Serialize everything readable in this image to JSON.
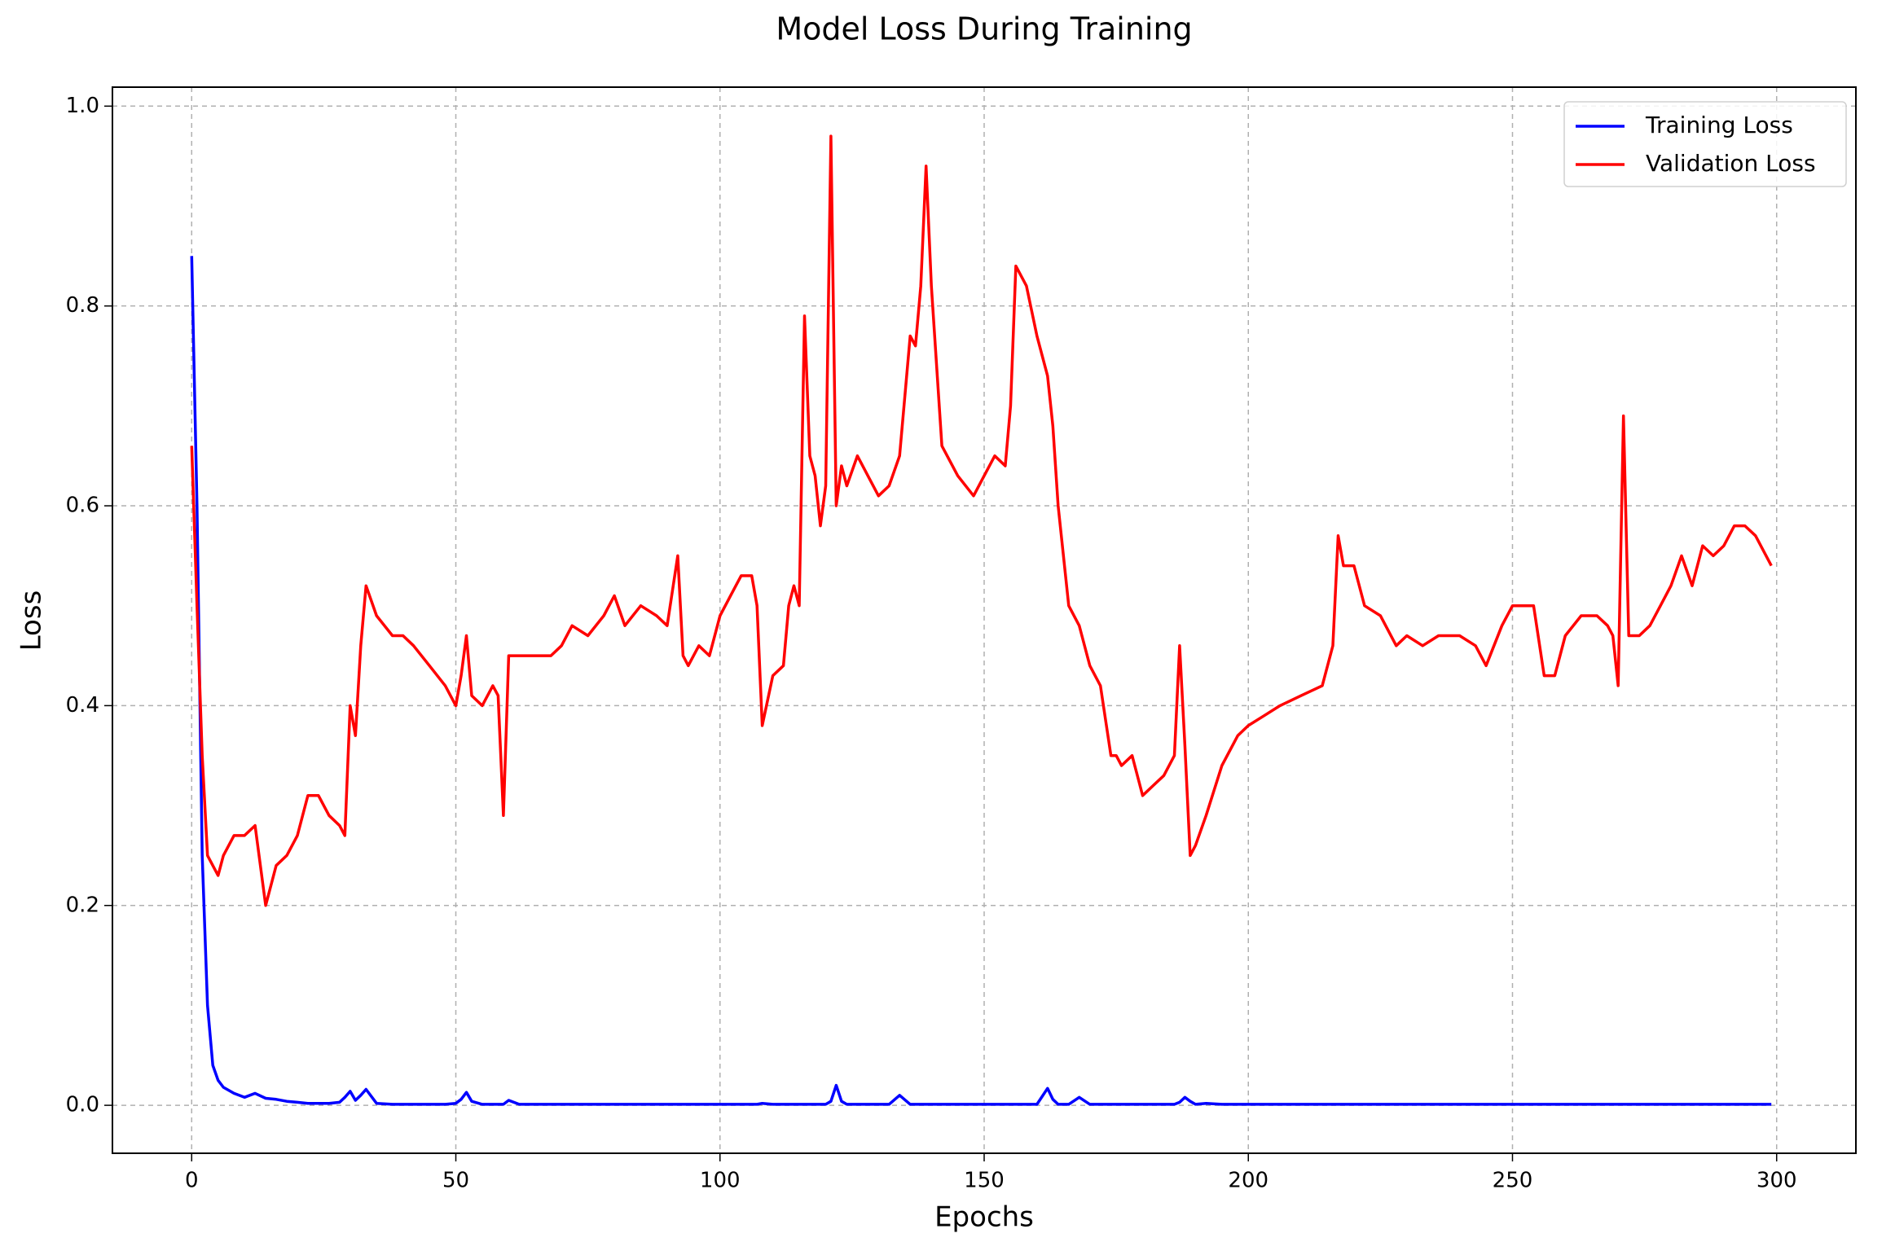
{
  "chart_data": {
    "type": "line",
    "title": "Model Loss During Training",
    "x_label": "Epochs",
    "y_label": "Loss",
    "x": [
      0,
      1,
      2,
      3,
      4,
      5,
      6,
      8,
      10,
      12,
      14,
      16,
      18,
      20,
      22,
      24,
      26,
      28,
      29,
      30,
      31,
      32,
      33,
      35,
      38,
      40,
      42,
      45,
      48,
      50,
      51,
      52,
      53,
      55,
      57,
      58,
      59,
      60,
      62,
      65,
      68,
      70,
      72,
      75,
      78,
      80,
      82,
      85,
      88,
      90,
      92,
      93,
      94,
      96,
      98,
      100,
      102,
      104,
      106,
      107,
      108,
      110,
      112,
      113,
      114,
      115,
      116,
      117,
      118,
      119,
      120,
      121,
      122,
      123,
      124,
      126,
      128,
      130,
      132,
      134,
      136,
      137,
      138,
      139,
      140,
      142,
      145,
      148,
      150,
      152,
      154,
      155,
      156,
      158,
      160,
      162,
      163,
      164,
      166,
      168,
      170,
      172,
      174,
      175,
      176,
      178,
      180,
      182,
      184,
      186,
      187,
      188,
      189,
      190,
      192,
      195,
      198,
      200,
      203,
      206,
      210,
      214,
      216,
      217,
      218,
      220,
      222,
      225,
      228,
      230,
      233,
      236,
      240,
      243,
      245,
      248,
      250,
      252,
      254,
      256,
      258,
      260,
      263,
      266,
      268,
      269,
      270,
      271,
      272,
      274,
      276,
      278,
      280,
      282,
      284,
      286,
      288,
      290,
      292,
      294,
      296,
      299
    ],
    "series": [
      {
        "name": "Training Loss",
        "color": "#0000ff",
        "values": [
          0.85,
          0.6,
          0.25,
          0.1,
          0.04,
          0.025,
          0.018,
          0.012,
          0.008,
          0.012,
          0.007,
          0.006,
          0.004,
          0.003,
          0.002,
          0.002,
          0.002,
          0.003,
          0.008,
          0.014,
          0.005,
          0.01,
          0.016,
          0.002,
          0.001,
          0.001,
          0.001,
          0.001,
          0.001,
          0.002,
          0.006,
          0.013,
          0.004,
          0.001,
          0.001,
          0.001,
          0.001,
          0.005,
          0.001,
          0.001,
          0.001,
          0.001,
          0.001,
          0.001,
          0.001,
          0.001,
          0.001,
          0.001,
          0.001,
          0.001,
          0.001,
          0.001,
          0.001,
          0.001,
          0.001,
          0.001,
          0.001,
          0.001,
          0.001,
          0.001,
          0.002,
          0.001,
          0.001,
          0.001,
          0.001,
          0.001,
          0.001,
          0.001,
          0.001,
          0.001,
          0.001,
          0.004,
          0.02,
          0.004,
          0.001,
          0.001,
          0.001,
          0.001,
          0.001,
          0.01,
          0.001,
          0.001,
          0.001,
          0.001,
          0.001,
          0.001,
          0.001,
          0.001,
          0.001,
          0.001,
          0.001,
          0.001,
          0.001,
          0.001,
          0.001,
          0.017,
          0.006,
          0.001,
          0.001,
          0.008,
          0.001,
          0.001,
          0.001,
          0.001,
          0.001,
          0.001,
          0.001,
          0.001,
          0.001,
          0.001,
          0.003,
          0.008,
          0.004,
          0.001,
          0.002,
          0.001,
          0.001,
          0.001,
          0.001,
          0.001,
          0.001,
          0.001,
          0.001,
          0.001,
          0.001,
          0.001,
          0.001,
          0.001,
          0.001,
          0.001,
          0.001,
          0.001,
          0.001,
          0.001,
          0.001,
          0.001,
          0.001,
          0.001,
          0.001,
          0.001,
          0.001,
          0.001,
          0.001,
          0.001,
          0.001,
          0.001,
          0.001,
          0.001,
          0.001,
          0.001,
          0.001,
          0.001,
          0.001,
          0.001,
          0.001,
          0.001,
          0.001,
          0.001,
          0.001,
          0.001,
          0.001,
          0.001
        ]
      },
      {
        "name": "Validation Loss",
        "color": "#ff0000",
        "values": [
          0.66,
          0.5,
          0.35,
          0.25,
          0.24,
          0.23,
          0.25,
          0.27,
          0.27,
          0.28,
          0.2,
          0.24,
          0.25,
          0.27,
          0.31,
          0.31,
          0.29,
          0.28,
          0.27,
          0.4,
          0.37,
          0.46,
          0.52,
          0.49,
          0.47,
          0.47,
          0.46,
          0.44,
          0.42,
          0.4,
          0.43,
          0.47,
          0.41,
          0.4,
          0.42,
          0.41,
          0.29,
          0.45,
          0.45,
          0.45,
          0.45,
          0.46,
          0.48,
          0.47,
          0.49,
          0.51,
          0.48,
          0.5,
          0.49,
          0.48,
          0.55,
          0.45,
          0.44,
          0.46,
          0.45,
          0.49,
          0.51,
          0.53,
          0.53,
          0.5,
          0.38,
          0.43,
          0.44,
          0.5,
          0.52,
          0.5,
          0.79,
          0.65,
          0.63,
          0.58,
          0.62,
          0.97,
          0.6,
          0.64,
          0.62,
          0.65,
          0.63,
          0.61,
          0.62,
          0.65,
          0.77,
          0.76,
          0.82,
          0.94,
          0.82,
          0.66,
          0.63,
          0.61,
          0.63,
          0.65,
          0.64,
          0.7,
          0.84,
          0.82,
          0.77,
          0.73,
          0.68,
          0.6,
          0.5,
          0.48,
          0.44,
          0.42,
          0.35,
          0.35,
          0.34,
          0.35,
          0.31,
          0.32,
          0.33,
          0.35,
          0.46,
          0.36,
          0.25,
          0.26,
          0.29,
          0.34,
          0.37,
          0.38,
          0.39,
          0.4,
          0.41,
          0.42,
          0.46,
          0.57,
          0.54,
          0.54,
          0.5,
          0.49,
          0.46,
          0.47,
          0.46,
          0.47,
          0.47,
          0.46,
          0.44,
          0.48,
          0.5,
          0.5,
          0.5,
          0.43,
          0.43,
          0.47,
          0.49,
          0.49,
          0.48,
          0.47,
          0.42,
          0.69,
          0.47,
          0.47,
          0.48,
          0.5,
          0.52,
          0.55,
          0.52,
          0.56,
          0.55,
          0.56,
          0.58,
          0.58,
          0.57,
          0.54
        ]
      }
    ],
    "xlim": [
      -15,
      315
    ],
    "xticks": [
      0,
      50,
      100,
      150,
      200,
      250,
      300
    ],
    "ylim": [
      -0.048,
      1.019
    ],
    "yticks": [
      {
        "value": 0,
        "label": "0.0"
      },
      0.2,
      0.4,
      0.6,
      0.8,
      {
        "value": 1,
        "label": "1.0"
      }
    ],
    "grid": true,
    "legend": "upper right"
  }
}
